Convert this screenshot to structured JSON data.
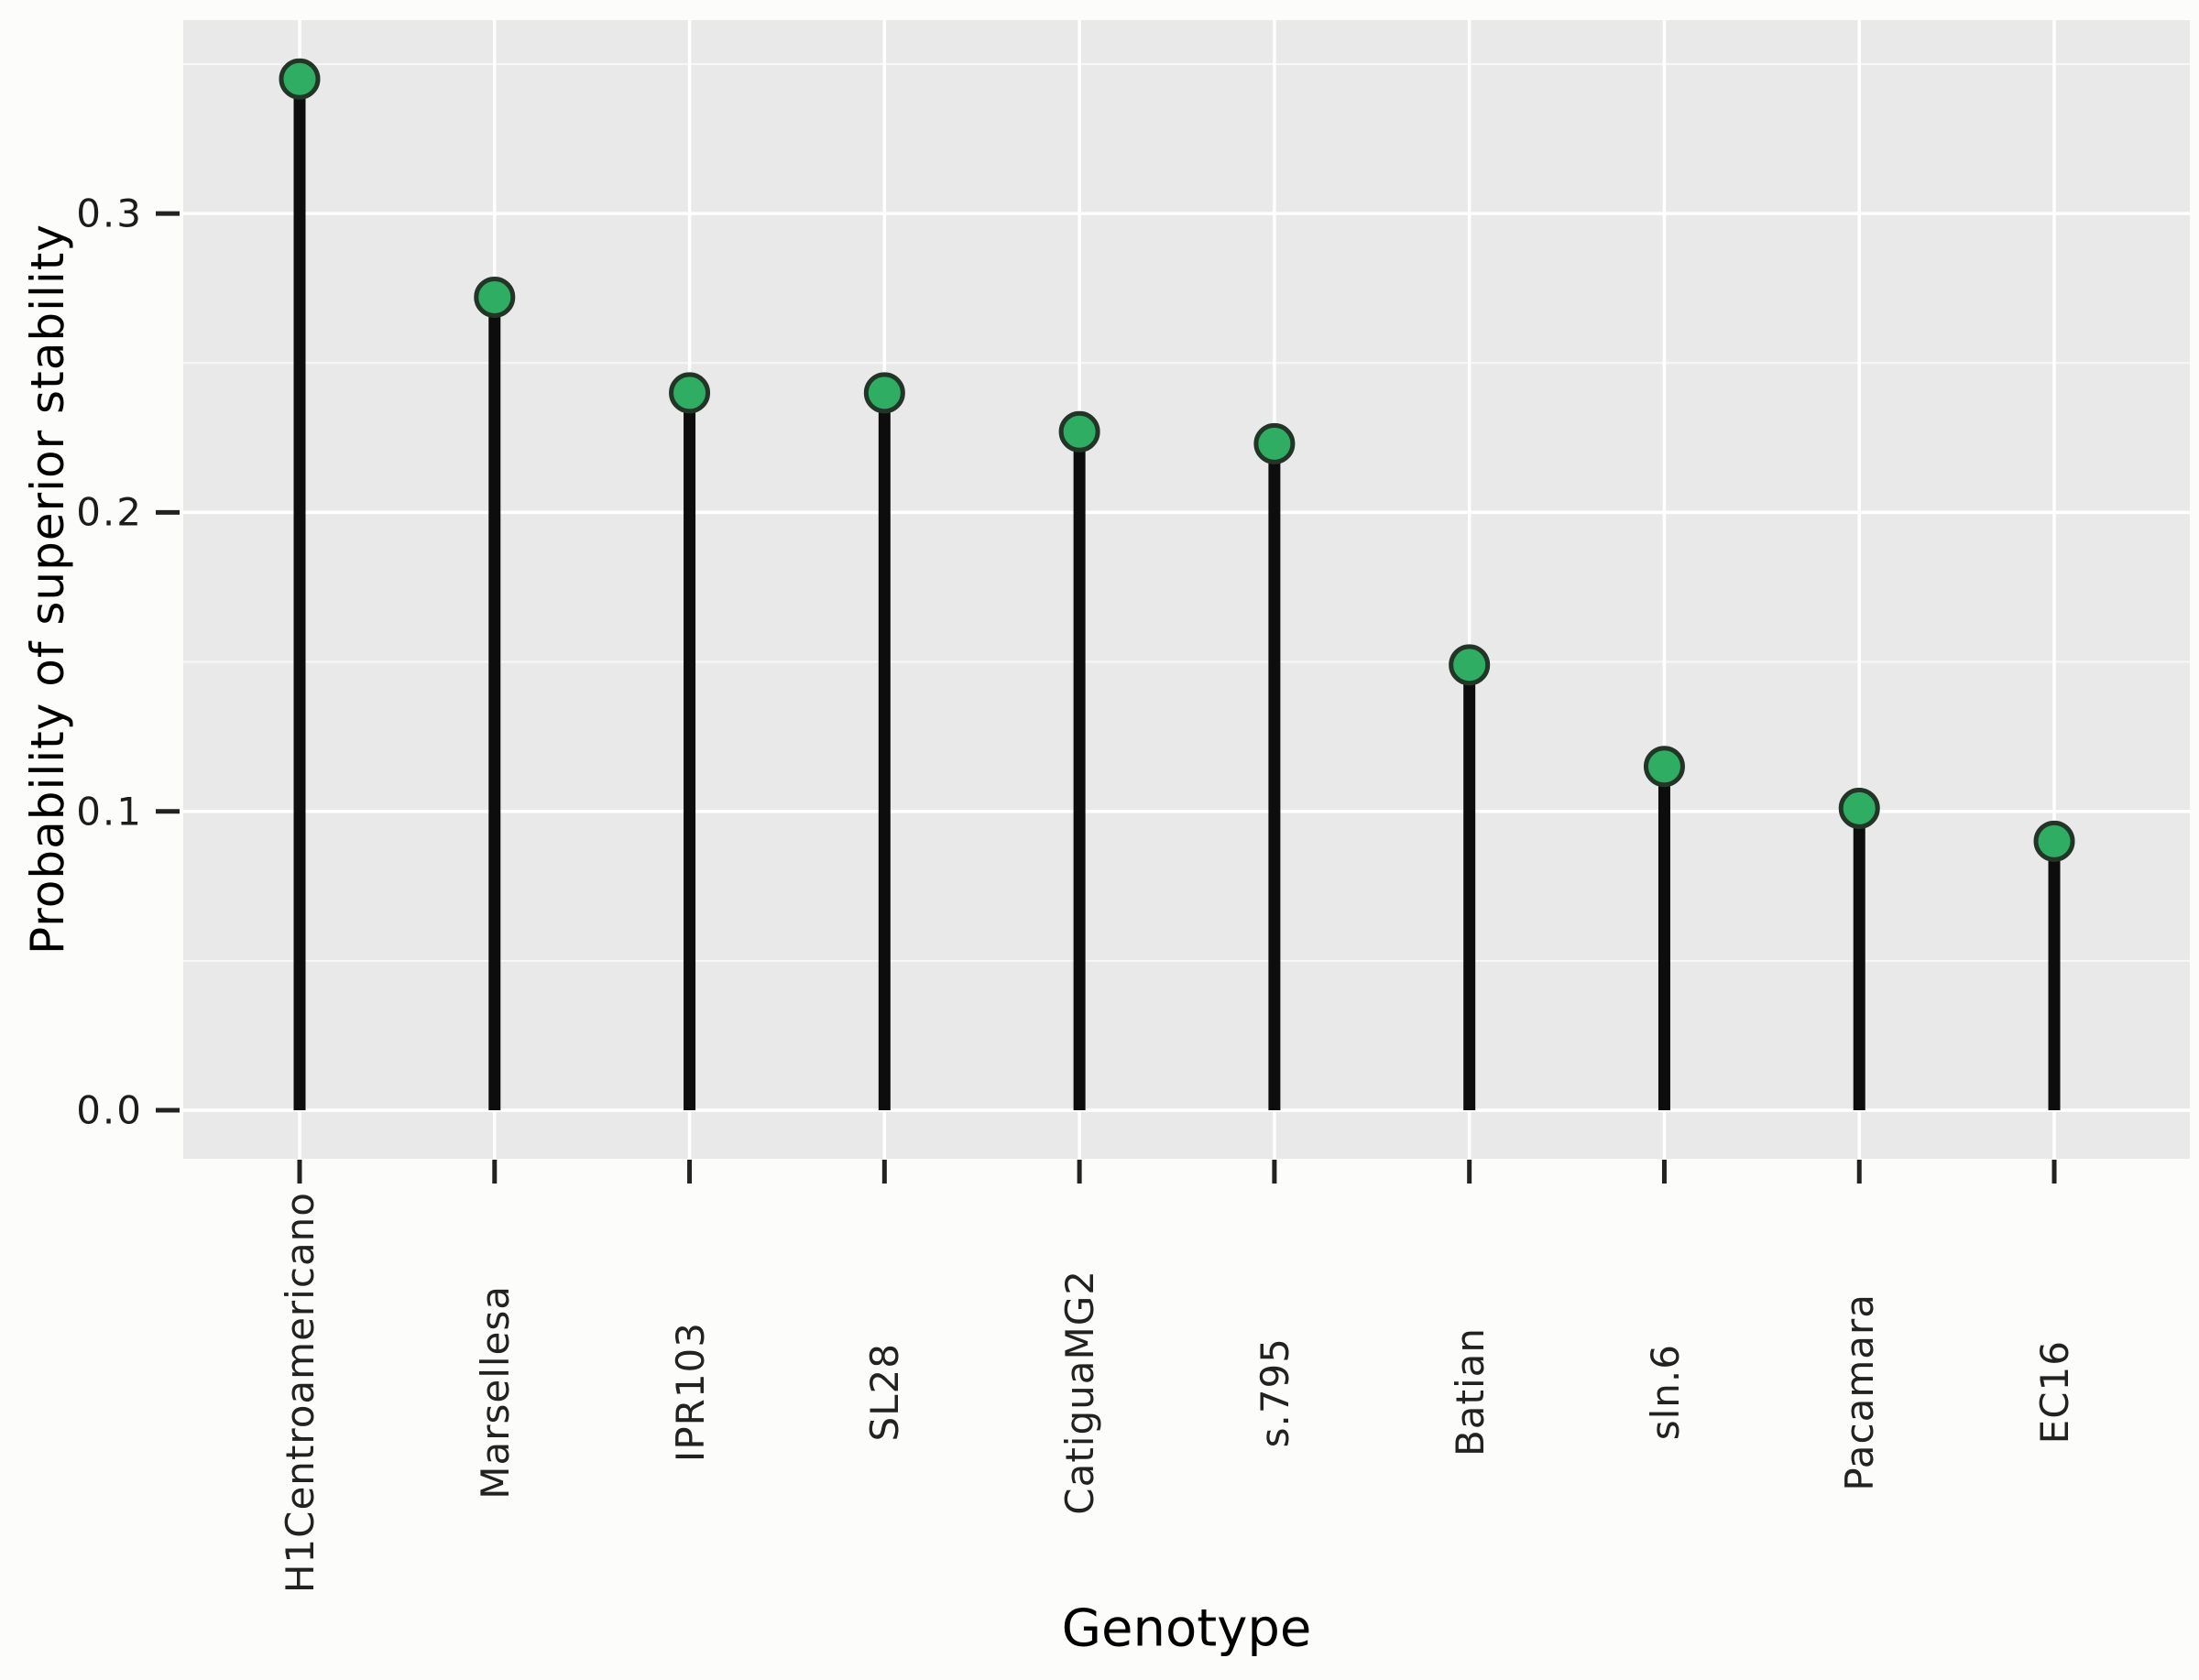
{
  "chart_data": {
    "type": "scatter",
    "variant": "lollipop",
    "title": "",
    "xlabel": "Genotype",
    "ylabel": "Probability of superior stability",
    "categories": [
      "H1Centroamericano",
      "Marsellesa",
      "IPR103",
      "SL28",
      "CatiguaMG2",
      "s.795",
      "Batian",
      "sln.6",
      "Pacamara",
      "EC16"
    ],
    "values": [
      0.345,
      0.272,
      0.24,
      0.24,
      0.227,
      0.223,
      0.149,
      0.115,
      0.101,
      0.09
    ],
    "y_tick_labels": [
      "0.0",
      "0.1",
      "0.2",
      "0.3"
    ],
    "y_tick_values": [
      0.0,
      0.1,
      0.2,
      0.3
    ],
    "y_minor_tick_values": [
      0.05,
      0.15,
      0.25,
      0.35
    ],
    "ylim": [
      -0.016,
      0.365
    ],
    "grid": "major-and-minor, white on gray panel",
    "legend": "none",
    "colors": {
      "point_fill": "#2fad63",
      "point_edge": "#223527",
      "stem": "#0d0d0d",
      "panel_background": "#e9e9e9",
      "gridline": "#ffffff",
      "tick_mark": "#222222",
      "page_background": "#fcfcfa"
    }
  }
}
